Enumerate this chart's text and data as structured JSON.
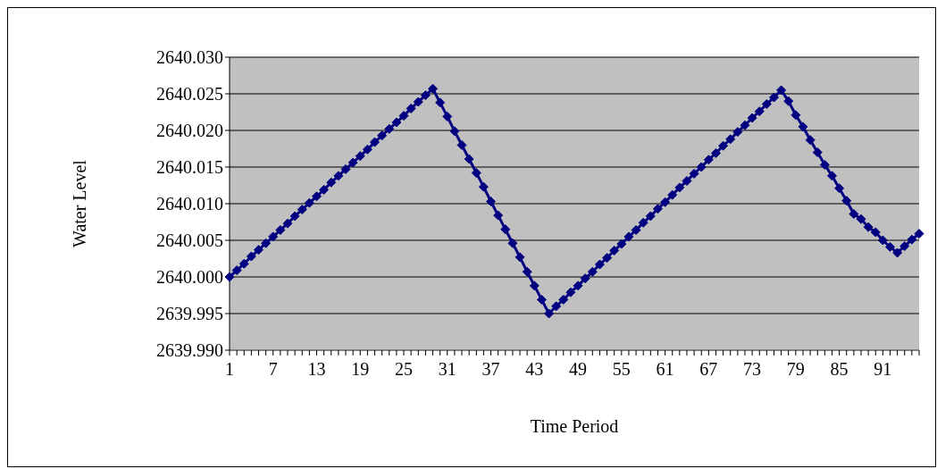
{
  "chart_data": {
    "type": "line",
    "xlabel": "Time Period",
    "ylabel": "Water Level",
    "categories": [
      "1",
      null,
      null,
      null,
      null,
      null,
      "7",
      null,
      null,
      null,
      null,
      null,
      "13",
      null,
      null,
      null,
      null,
      null,
      "19",
      null,
      null,
      null,
      null,
      null,
      "25",
      null,
      null,
      null,
      null,
      null,
      "31",
      null,
      null,
      null,
      null,
      null,
      "37",
      null,
      null,
      null,
      null,
      null,
      "43",
      null,
      null,
      null,
      null,
      null,
      "49",
      null,
      null,
      null,
      null,
      null,
      "55",
      null,
      null,
      null,
      null,
      null,
      "61",
      null,
      null,
      null,
      null,
      null,
      "67",
      null,
      null,
      null,
      null,
      null,
      "73",
      null,
      null,
      null,
      null,
      null,
      "79",
      null,
      null,
      null,
      null,
      null,
      "85",
      null,
      null,
      null,
      null,
      null,
      "91",
      null,
      null,
      null,
      null,
      null
    ],
    "series": [
      {
        "color": "#000080",
        "values": [
          2640.0,
          2640.0009,
          2640.0018,
          2640.0028,
          2640.0037,
          2640.0046,
          2640.0055,
          2640.0064,
          2640.0073,
          2640.0083,
          2640.0092,
          2640.0101,
          2640.011,
          2640.0119,
          2640.0129,
          2640.0138,
          2640.0147,
          2640.0156,
          2640.0165,
          2640.0174,
          2640.0184,
          2640.0193,
          2640.0202,
          2640.0211,
          2640.022,
          2640.023,
          2640.0239,
          2640.0248,
          2640.0257,
          2640.0238,
          2640.0219,
          2640.0199,
          2640.018,
          2640.0161,
          2640.0142,
          2640.0123,
          2640.0103,
          2640.0084,
          2640.0065,
          2640.0046,
          2640.0027,
          2640.0007,
          2639.9988,
          2639.9969,
          2639.995,
          2639.996,
          2639.9969,
          2639.9979,
          2639.9988,
          2639.9998,
          2640.0007,
          2640.0017,
          2640.0026,
          2640.0036,
          2640.0045,
          2640.0055,
          2640.0064,
          2640.0074,
          2640.0083,
          2640.0093,
          2640.0102,
          2640.0112,
          2640.0122,
          2640.0131,
          2640.0141,
          2640.015,
          2640.016,
          2640.0169,
          2640.0179,
          2640.0188,
          2640.0198,
          2640.0207,
          2640.0217,
          2640.0226,
          2640.0236,
          2640.0245,
          2640.0255,
          2640.024,
          2640.0221,
          2640.0205,
          2640.0187,
          2640.017,
          2640.0153,
          2640.0138,
          2640.0121,
          2640.0104,
          2640.0086,
          2640.0079,
          2640.0068,
          2640.0061,
          2640.005,
          2640.0041,
          2640.0033,
          2640.0042,
          2640.0051,
          2640.0059
        ]
      }
    ],
    "ylim": [
      2639.99,
      2640.03
    ],
    "yticks": [
      {
        "value": 2639.99,
        "label": "2639.990"
      },
      {
        "value": 2639.995,
        "label": "2639.995"
      },
      {
        "value": 2640,
        "label": "2640.000"
      },
      {
        "value": 2640.005,
        "label": "2640.005"
      },
      {
        "value": 2640.01,
        "label": "2640.010"
      },
      {
        "value": 2640.015,
        "label": "2640.015"
      },
      {
        "value": 2640.02,
        "label": "2640.020"
      },
      {
        "value": 2640.025,
        "label": "2640.025"
      },
      {
        "value": 2640.03,
        "label": "2640.030"
      }
    ],
    "grid": "y",
    "legend": false,
    "marker": "diamond",
    "line_style": "solid"
  }
}
